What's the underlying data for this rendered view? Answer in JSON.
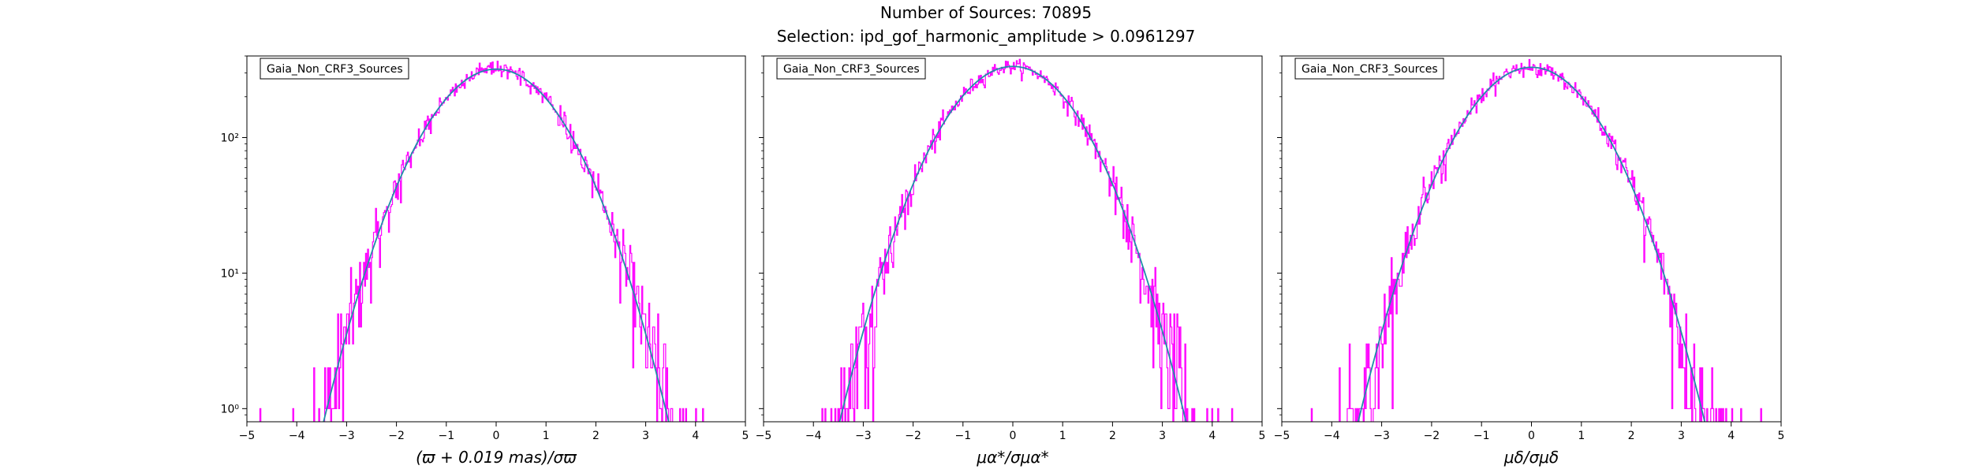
{
  "figure": {
    "title_line1": "Number of Sources: 70895",
    "title_line2": "Selection: ipd_gof_harmonic_amplitude > 0.0961297"
  },
  "colors": {
    "histogram": "#ff00ff",
    "fit_curve": "#1f8fa8",
    "axes": "#000000",
    "background": "#ffffff"
  },
  "chart_data": [
    {
      "type": "bar",
      "subtype": "histogram-step with gaussian fit",
      "legend_label": "Gaia_Non_CRF3_Sources",
      "xlabel": "(ϖ + 0.019 mas)/σϖ",
      "ylabel": "",
      "xlim": [
        -5,
        5
      ],
      "ylim": [
        0.8,
        400
      ],
      "yscale": "log",
      "xticks": [
        "−5",
        "−4",
        "−3",
        "−2",
        "−1",
        "0",
        "1",
        "2",
        "3",
        "4",
        "5"
      ],
      "yticks": [
        "10⁰",
        "10¹",
        "10²"
      ],
      "fit": {
        "mu": 0.0,
        "sigma": 1.0,
        "peak": 320
      },
      "hist_extent": [
        -4.8,
        4.55
      ],
      "grid": false,
      "legend_position": "upper-left"
    },
    {
      "type": "bar",
      "subtype": "histogram-step with gaussian fit",
      "legend_label": "Gaia_Non_CRF3_Sources",
      "xlabel": "μα*/σμα*",
      "ylabel": "",
      "xlim": [
        -5,
        5
      ],
      "ylim": [
        0.8,
        400
      ],
      "yscale": "log",
      "xticks": [
        "−5",
        "−4",
        "−3",
        "−2",
        "−1",
        "0",
        "1",
        "2",
        "3",
        "4",
        "5"
      ],
      "yticks": [],
      "fit": {
        "mu": 0.0,
        "sigma": 1.0,
        "peak": 335
      },
      "hist_extent": [
        -4.75,
        5.0
      ],
      "grid": false,
      "legend_position": "upper-left"
    },
    {
      "type": "bar",
      "subtype": "histogram-step with gaussian fit",
      "legend_label": "Gaia_Non_CRF3_Sources",
      "xlabel": "μδ/σμδ",
      "ylabel": "",
      "xlim": [
        -5,
        5
      ],
      "ylim": [
        0.8,
        400
      ],
      "yscale": "log",
      "xticks": [
        "−5",
        "−4",
        "−3",
        "−2",
        "−1",
        "0",
        "1",
        "2",
        "3",
        "4",
        "5"
      ],
      "yticks": [],
      "fit": {
        "mu": 0.0,
        "sigma": 1.0,
        "peak": 330
      },
      "hist_extent": [
        -4.75,
        5.0
      ],
      "grid": false,
      "legend_position": "upper-left"
    }
  ]
}
